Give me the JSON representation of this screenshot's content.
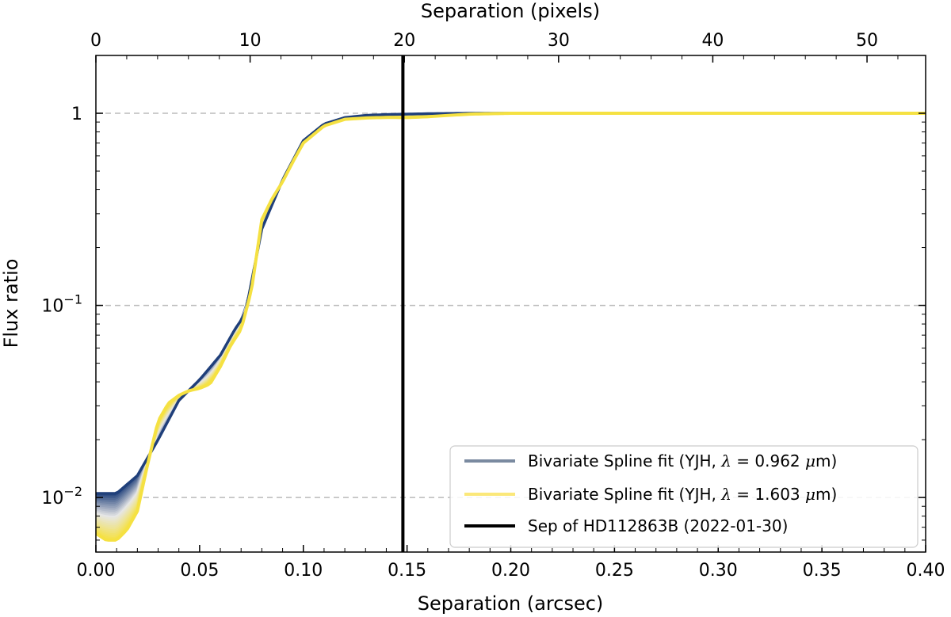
{
  "chart_data": {
    "type": "line",
    "xlabel": "Separation (arcsec)",
    "x2label": "Separation (pixels)",
    "ylabel": "Flux ratio",
    "xlim": [
      0.0,
      0.4
    ],
    "x2lim": [
      0,
      53.8
    ],
    "ylim_log": [
      0.0052,
      2.0
    ],
    "yscale": "log",
    "x_ticks": [
      "0.00",
      "0.05",
      "0.10",
      "0.15",
      "0.20",
      "0.25",
      "0.30",
      "0.35",
      "0.40"
    ],
    "x2_ticks": [
      "0",
      "10",
      "20",
      "30",
      "40",
      "50"
    ],
    "y_ticks": [
      {
        "value": 1,
        "base": "1",
        "exp": ""
      },
      {
        "value": 0.1,
        "base": "10",
        "exp": "−1"
      },
      {
        "value": 0.01,
        "base": "10",
        "exp": "−2"
      }
    ],
    "grid": "horizontal dashed at major y ticks",
    "legend_position": "lower right",
    "series": [
      {
        "name": "Bivariate Spline fit (YJH, λ = 0.962 μm)",
        "legend_label": "Bivariate Spline fit (YJH, ",
        "legend_lambda": "0.962",
        "legend_unit": "μm)",
        "color": "#1f3f7a",
        "legend_color": "#7a8aa0",
        "x": [
          0.0,
          0.01,
          0.02,
          0.03,
          0.04,
          0.05,
          0.06,
          0.067,
          0.072,
          0.08,
          0.09,
          0.1,
          0.11,
          0.12,
          0.13,
          0.14,
          0.15,
          0.16,
          0.18,
          0.2,
          0.25,
          0.3,
          0.35,
          0.4
        ],
        "y": [
          0.0105,
          0.0105,
          0.013,
          0.02,
          0.032,
          0.041,
          0.055,
          0.075,
          0.09,
          0.25,
          0.45,
          0.72,
          0.88,
          0.95,
          0.975,
          0.985,
          0.99,
          0.995,
          1.0,
          1.0,
          1.0,
          1.0,
          1.0,
          1.0
        ]
      },
      {
        "name": "Bivariate Spline fit (YJH, λ = 1.603 μm)",
        "legend_label": "Bivariate Spline fit (YJH, ",
        "legend_lambda": "1.603",
        "legend_unit": "μm)",
        "color": "#f5e142",
        "legend_color": "#fbe87a",
        "x": [
          0.0,
          0.005,
          0.01,
          0.015,
          0.02,
          0.025,
          0.03,
          0.035,
          0.04,
          0.045,
          0.05,
          0.055,
          0.06,
          0.065,
          0.07,
          0.075,
          0.08,
          0.085,
          0.09,
          0.095,
          0.1,
          0.11,
          0.12,
          0.13,
          0.14,
          0.15,
          0.16,
          0.17,
          0.18,
          0.2,
          0.25,
          0.3,
          0.35,
          0.4
        ],
        "y": [
          0.0065,
          0.006,
          0.006,
          0.0068,
          0.0085,
          0.015,
          0.025,
          0.031,
          0.034,
          0.036,
          0.037,
          0.039,
          0.048,
          0.062,
          0.075,
          0.12,
          0.28,
          0.36,
          0.44,
          0.56,
          0.7,
          0.86,
          0.93,
          0.945,
          0.952,
          0.95,
          0.96,
          0.975,
          0.99,
          1.0,
          1.0,
          1.0,
          1.0,
          1.0
        ]
      }
    ],
    "vline": {
      "x": 0.148,
      "label": "Sep of HD112863B (2022-01-30)",
      "color": "#000000"
    }
  }
}
